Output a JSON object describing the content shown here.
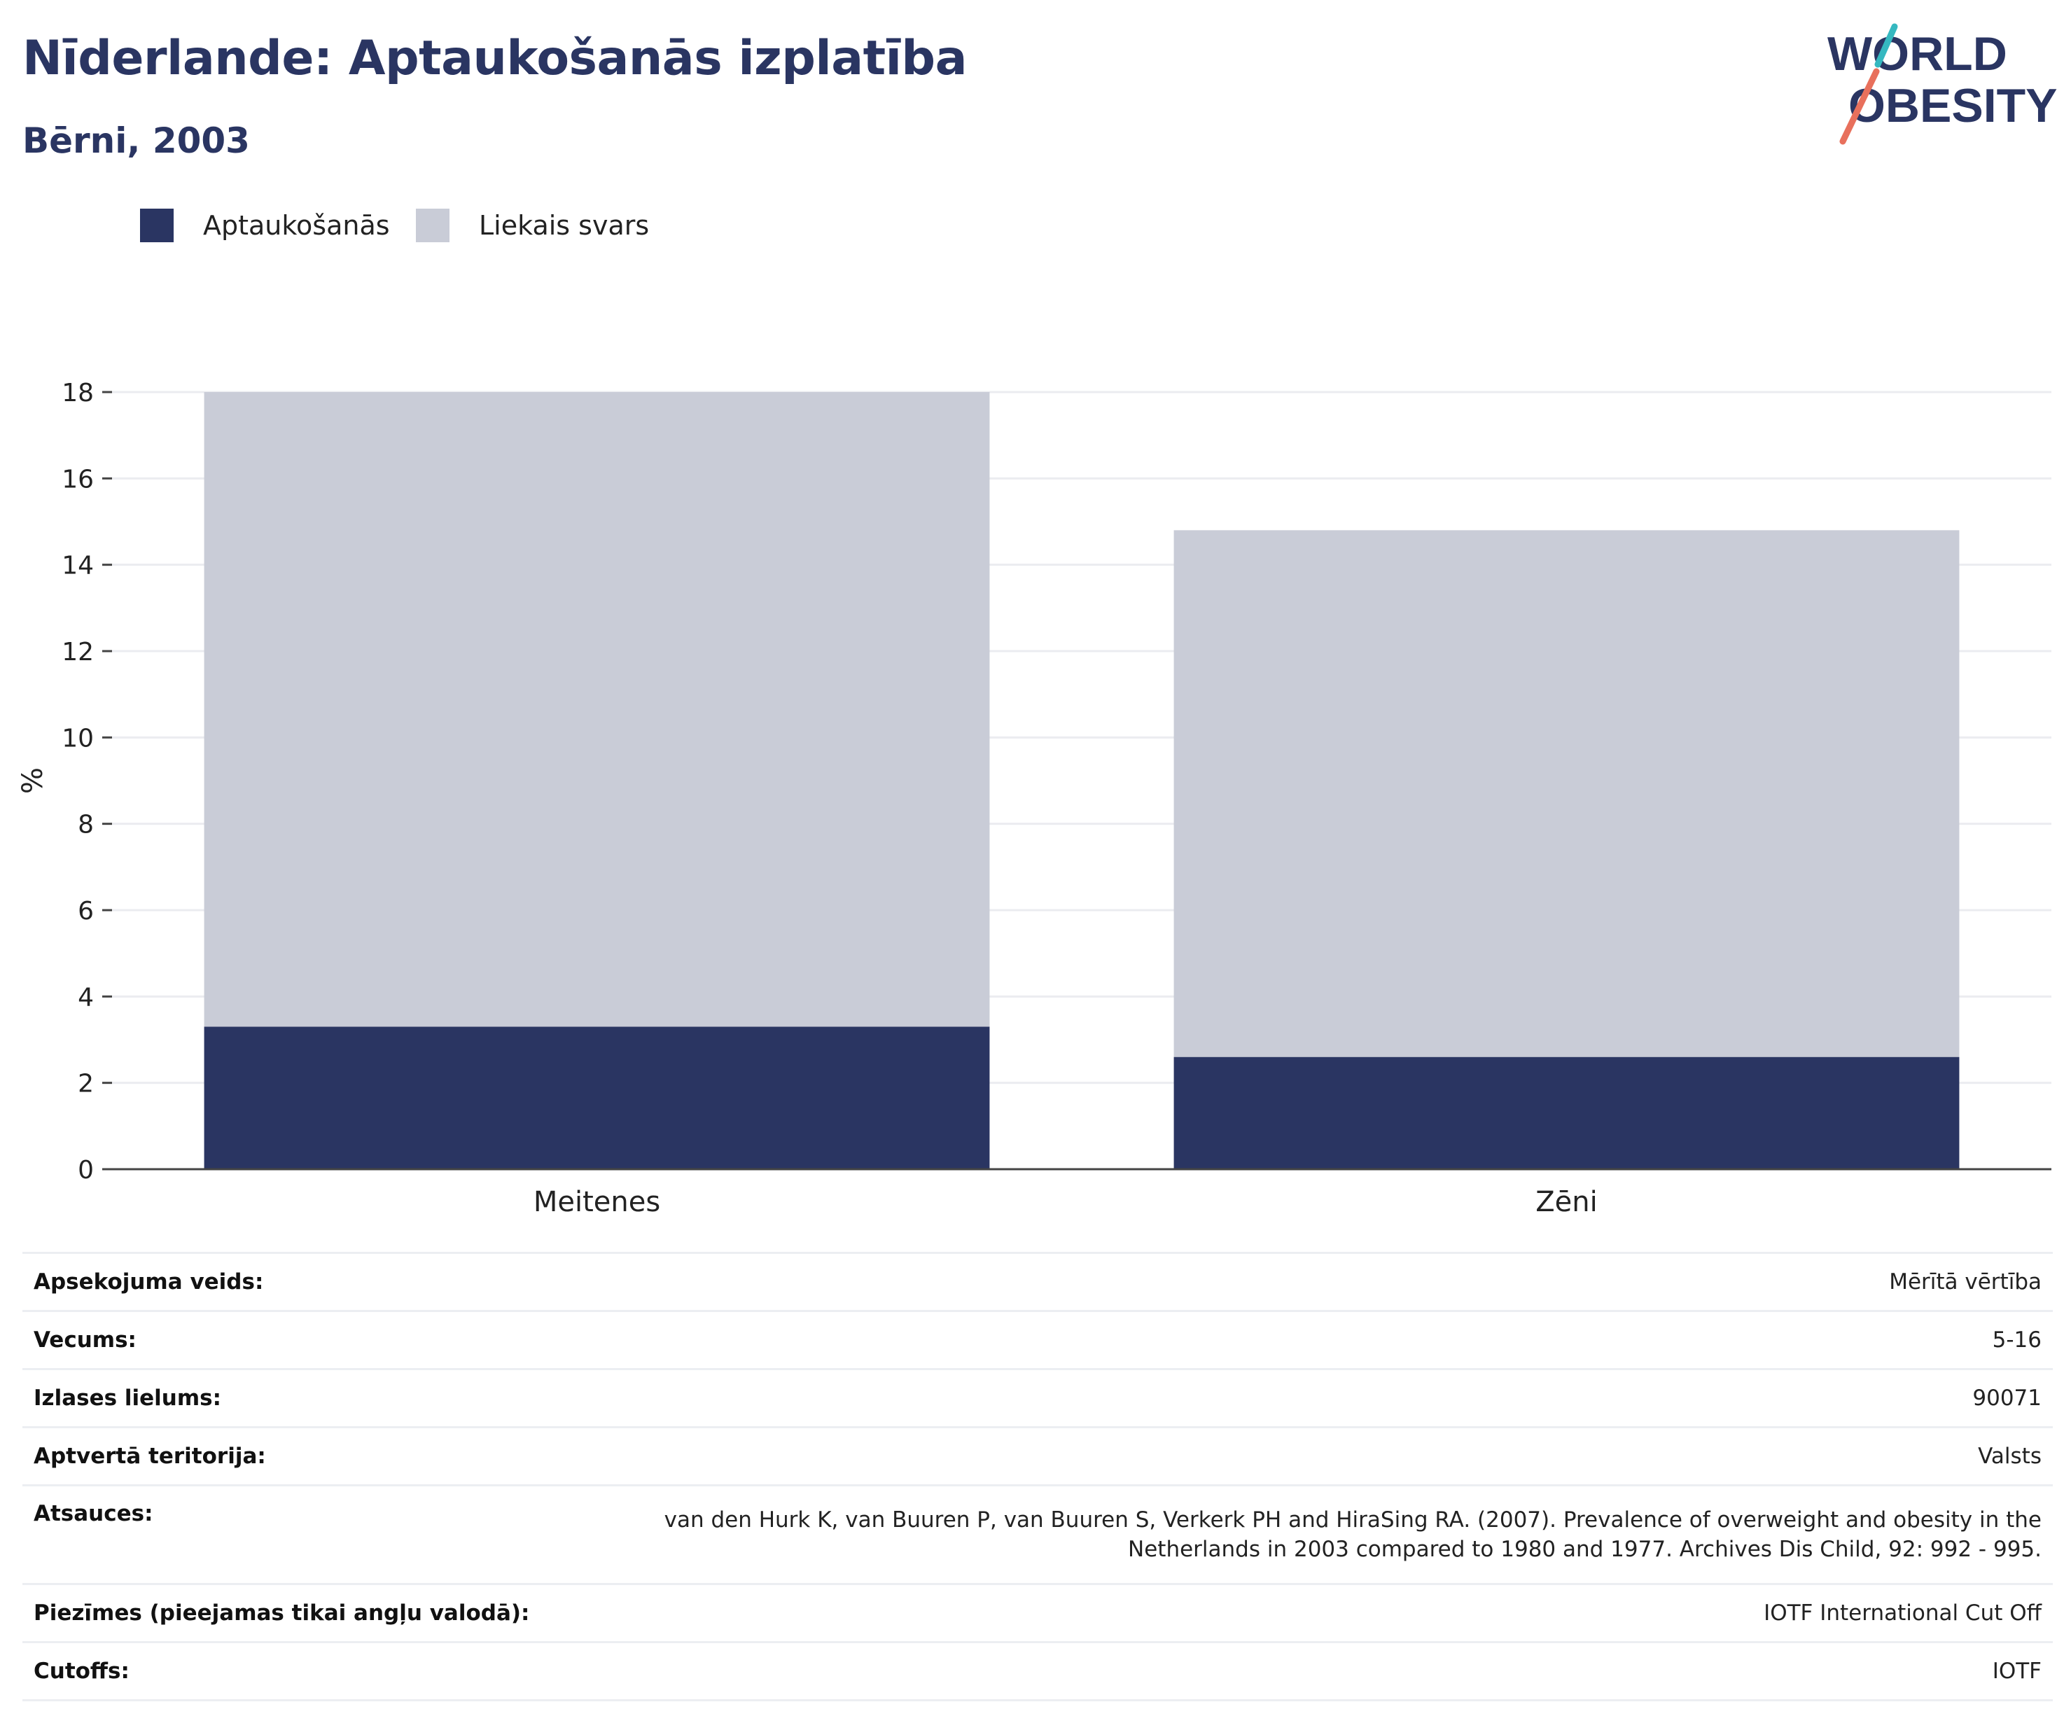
{
  "header": {
    "title": "Nīderlande: Aptaukošanās izplatība",
    "subtitle": "Bērni, 2003",
    "logo_line1": "WORLD",
    "logo_line2": "OBESITY"
  },
  "colors": {
    "obesity": "#2a3562",
    "overweight": "#c9ccd7",
    "grid": "#ebecf0",
    "axis": "#444444",
    "logo_teal": "#35b8c0",
    "logo_coral": "#e8705c"
  },
  "chart_data": {
    "type": "bar",
    "stacked": true,
    "categories": [
      "Meitenes",
      "Zēni"
    ],
    "series": [
      {
        "name": "Aptaukošanās",
        "values": [
          3.3,
          2.6
        ]
      },
      {
        "name": "Liekais svars",
        "values": [
          14.7,
          12.2
        ]
      }
    ],
    "xlabel": "",
    "ylabel": "%",
    "ylim": [
      0,
      18
    ],
    "yticks": [
      0,
      2,
      4,
      6,
      8,
      10,
      12,
      14,
      16,
      18
    ],
    "grid": true,
    "legend_position": "top-left"
  },
  "info": [
    {
      "label": "Apsekojuma veids:",
      "value": "Mērītā vērtība"
    },
    {
      "label": "Vecums:",
      "value": "5-16"
    },
    {
      "label": "Izlases lielums:",
      "value": "90071"
    },
    {
      "label": "Aptvertā teritorija:",
      "value": "Valsts"
    },
    {
      "label": "Atsauces:",
      "value_line1": "van den Hurk K, van Buuren P, van Buuren S, Verkerk PH and HiraSing RA. (2007). Prevalence of overweight and obesity in the",
      "value_line2": "Netherlands in 2003 compared to 1980 and 1977. Archives Dis Child, 92: 992 - 995."
    },
    {
      "label": "Piezīmes (pieejamas tikai angļu valodā):",
      "value": "IOTF International Cut Off"
    },
    {
      "label": "Cutoffs:",
      "value": "IOTF"
    }
  ]
}
